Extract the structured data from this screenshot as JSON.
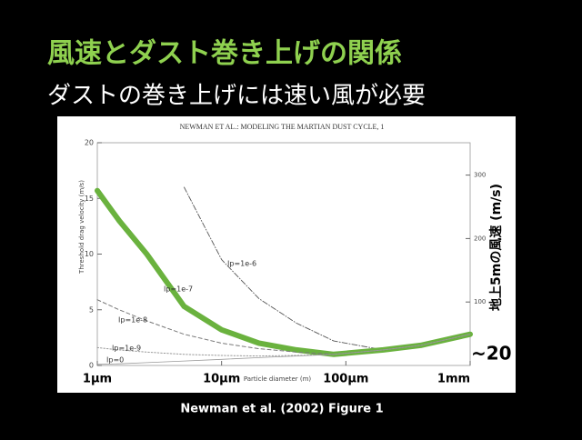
{
  "slide": {
    "title": "風速とダスト巻き上げの関係",
    "subtitle": "ダストの巻き上げには速い風が必要",
    "caption": "Newman et al. (2002)  Figure 1"
  },
  "chart_data": {
    "type": "line",
    "title": "NEWMAN ET AL.: MODELING THE MARTIAN DUST CYCLE, 1",
    "x_label": "Particle diameter (m)",
    "y_label": "Threshold drag velocity (m/s)",
    "y2_label": "地上5mの風速 (m/s)",
    "annotation": "~20",
    "x": [
      1e-06,
      1.5e-06,
      2.5e-06,
      5e-06,
      1e-05,
      2e-05,
      4e-05,
      8e-05,
      0.0002,
      0.0004,
      0.001
    ],
    "xlim": [
      1e-06,
      0.001
    ],
    "log_x": true,
    "xticks": [
      {
        "value": 1e-06,
        "label": "1µm"
      },
      {
        "value": 1e-05,
        "label": "10µm"
      },
      {
        "value": 0.0001,
        "label": "100µm"
      },
      {
        "value": 0.001,
        "label": "1mm"
      }
    ],
    "ylim": [
      0,
      20
    ],
    "yticks": [
      0,
      5,
      10,
      15,
      20
    ],
    "y2lim": [
      0,
      351
    ],
    "y2ticks": [
      100,
      200,
      300
    ],
    "series": [
      {
        "name": "Ip=1e-6",
        "color": "#555555",
        "values": [
          null,
          null,
          null,
          16,
          9.5,
          6.0,
          3.8,
          2.2,
          1.4,
          1.8,
          2.8
        ]
      },
      {
        "name": "Ip=1e-7",
        "color": "#6ab23e",
        "values": [
          15.7,
          13.0,
          10.0,
          5.3,
          3.2,
          2.0,
          1.4,
          1.0,
          1.4,
          1.8,
          2.8
        ]
      },
      {
        "name": "Ip=1e-8",
        "color": "#777777",
        "values": [
          5.9,
          5.0,
          4.0,
          2.8,
          2.0,
          1.5,
          1.2,
          1.0,
          1.4,
          1.8,
          2.8
        ]
      },
      {
        "name": "Ip=1e-9",
        "color": "#999999",
        "values": [
          1.6,
          1.4,
          1.2,
          1.0,
          0.9,
          0.85,
          0.9,
          1.0,
          1.4,
          1.8,
          2.8
        ]
      },
      {
        "name": "Ip=0",
        "color": "#999999",
        "values": [
          0.1,
          0.15,
          0.25,
          0.4,
          0.55,
          0.7,
          0.85,
          1.0,
          1.4,
          1.8,
          2.8
        ]
      }
    ]
  }
}
